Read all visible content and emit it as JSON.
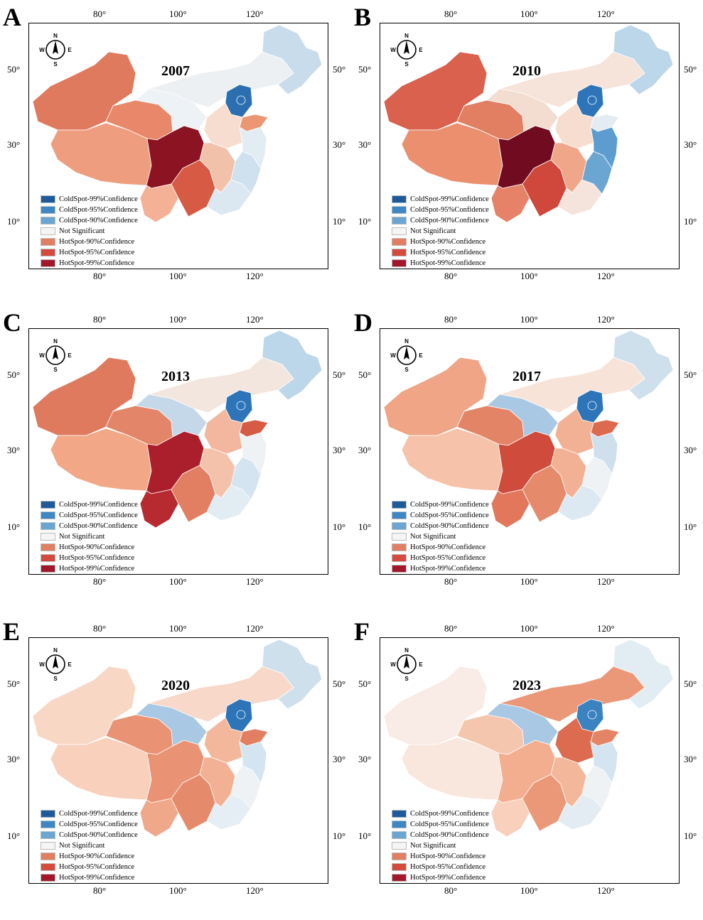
{
  "legend_items": [
    {
      "label": "ColdSpot-99%Confidence",
      "color": "#1f5a9a"
    },
    {
      "label": "ColdSpot-95%Confidence",
      "color": "#3f86c4"
    },
    {
      "label": "ColdSpot-90%Confidence",
      "color": "#6ba5d1"
    },
    {
      "label": "Not Significant",
      "color": "#f5f5f5"
    },
    {
      "label": "HotSpot-90%Confidence",
      "color": "#e27e62"
    },
    {
      "label": "HotSpot-95%Confidence",
      "color": "#d44a3e"
    },
    {
      "label": "HotSpot-99%Confidence",
      "color": "#a3172c"
    }
  ],
  "ticks": {
    "lon_top": [
      "80°",
      "100°",
      "120°"
    ],
    "lon_bottom": [
      "80°",
      "100°",
      "120°"
    ],
    "lat_left": [
      "50°",
      "30°",
      "10°"
    ],
    "lat_right": [
      "50°",
      "30°",
      "10°"
    ]
  },
  "compass": {
    "n": "N",
    "s": "S",
    "e": "E",
    "w": "W"
  },
  "region_names": [
    "northeast",
    "inner-mongolia",
    "xinjiang",
    "tibet",
    "qinghai",
    "gansu-ningxia",
    "beijing-hebei",
    "shandong",
    "shanxi-henan",
    "sichuan-chongqing",
    "yunnan",
    "guizhou-guangxi",
    "hunan-hubei",
    "guangdong",
    "fujian-jiangxi",
    "jiangsu-zhejiang"
  ],
  "panels": [
    {
      "letter": "A",
      "year": "2007",
      "colors": {
        "northeast": "#c9dcec",
        "inner-mongolia": "#edf0f3",
        "xinjiang": "#e07a5f",
        "tibet": "#ef9d7f",
        "qinghai": "#e8876a",
        "gansu-ningxia": "#edf2f6",
        "beijing-hebei": "#2c6fb0",
        "shandong": "#eb9774",
        "shanxi-henan": "#f7ddcf",
        "sichuan-chongqing": "#8c1422",
        "yunnan": "#f4b196",
        "guizhou-guangxi": "#d65a44",
        "hunan-hubei": "#f2c1a9",
        "guangdong": "#dce8f1",
        "fujian-jiangxi": "#cfe1ee",
        "jiangsu-zhejiang": "#e2ecf3"
      }
    },
    {
      "letter": "B",
      "year": "2010",
      "colors": {
        "northeast": "#bcd6ea",
        "inner-mongolia": "#f6e3da",
        "xinjiang": "#d9614d",
        "tibet": "#eb8f6f",
        "qinghai": "#e27e62",
        "gansu-ningxia": "#f3dcd0",
        "beijing-hebei": "#2d75b8",
        "shandong": "#e3ecf3",
        "shanxi-henan": "#f6ddd0",
        "sichuan-chongqing": "#700b20",
        "yunnan": "#e58267",
        "guizhou-guangxi": "#d0473b",
        "hunan-hubei": "#f0a789",
        "guangdong": "#f5e4dc",
        "fujian-jiangxi": "#6ba5d1",
        "jiangsu-zhejiang": "#5d9ccf"
      }
    },
    {
      "letter": "C",
      "year": "2013",
      "colors": {
        "northeast": "#bcd6ea",
        "inner-mongolia": "#f3e6df",
        "xinjiang": "#e07a5f",
        "tibet": "#f2a886",
        "qinghai": "#e28568",
        "gansu-ningxia": "#c4d8ea",
        "beijing-hebei": "#2d75b8",
        "shandong": "#d65a44",
        "shanxi-henan": "#f3b79f",
        "sichuan-chongqing": "#ab1e2b",
        "yunnan": "#b72a30",
        "guizhou-guangxi": "#e27e62",
        "hunan-hubei": "#f4c2ab",
        "guangdong": "#e2ecf3",
        "fujian-jiangxi": "#d4e4f0",
        "jiangsu-zhejiang": "#eef2f5"
      }
    },
    {
      "letter": "D",
      "year": "2017",
      "colors": {
        "northeast": "#cfe0ed",
        "inner-mongolia": "#f8e3d8",
        "xinjiang": "#efa586",
        "tibet": "#f6c2aa",
        "qinghai": "#e38467",
        "gansu-ningxia": "#a9c8e3",
        "beijing-hebei": "#2d75b8",
        "shandong": "#dd6a4f",
        "shanxi-henan": "#f2b194",
        "sichuan-chongqing": "#cf4b3c",
        "yunnan": "#e2775c",
        "guizhou-guangxi": "#e58b6c",
        "hunan-hubei": "#f2b194",
        "guangdong": "#dde9f2",
        "fujian-jiangxi": "#eef2f5",
        "jiangsu-zhejiang": "#cfe0ed"
      }
    },
    {
      "letter": "E",
      "year": "2020",
      "colors": {
        "northeast": "#cfe0ed",
        "inner-mongolia": "#f8d8c8",
        "xinjiang": "#f9d7c5",
        "tibet": "#f8d0bc",
        "qinghai": "#e99274",
        "gansu-ningxia": "#a9c8e3",
        "beijing-hebei": "#2d75b8",
        "shandong": "#e27e62",
        "shanxi-henan": "#f3b89c",
        "sichuan-chongqing": "#e99274",
        "yunnan": "#f0a88a",
        "guizhou-guangxi": "#e58b6c",
        "hunan-hubei": "#f2b194",
        "guangdong": "#e6eef5",
        "fujian-jiangxi": "#eef2f5",
        "jiangsu-zhejiang": "#d4e4f0"
      }
    },
    {
      "letter": "F",
      "year": "2023",
      "colors": {
        "northeast": "#e2ecf3",
        "inner-mongolia": "#eb9879",
        "xinjiang": "#f9ebe5",
        "tibet": "#f9e6dd",
        "qinghai": "#f5c6ae",
        "gansu-ningxia": "#a9c8e3",
        "beijing-hebei": "#3b82c0",
        "shandong": "#e38467",
        "shanxi-henan": "#dc6b50",
        "sichuan-chongqing": "#f3ad8f",
        "yunnan": "#f8d0bc",
        "guizhou-guangxi": "#eb9879",
        "hunan-hubei": "#f3b89c",
        "guangdong": "#e3ecf3",
        "fujian-jiangxi": "#eef2f5",
        "jiangsu-zhejiang": "#d4e4f0"
      }
    }
  ]
}
